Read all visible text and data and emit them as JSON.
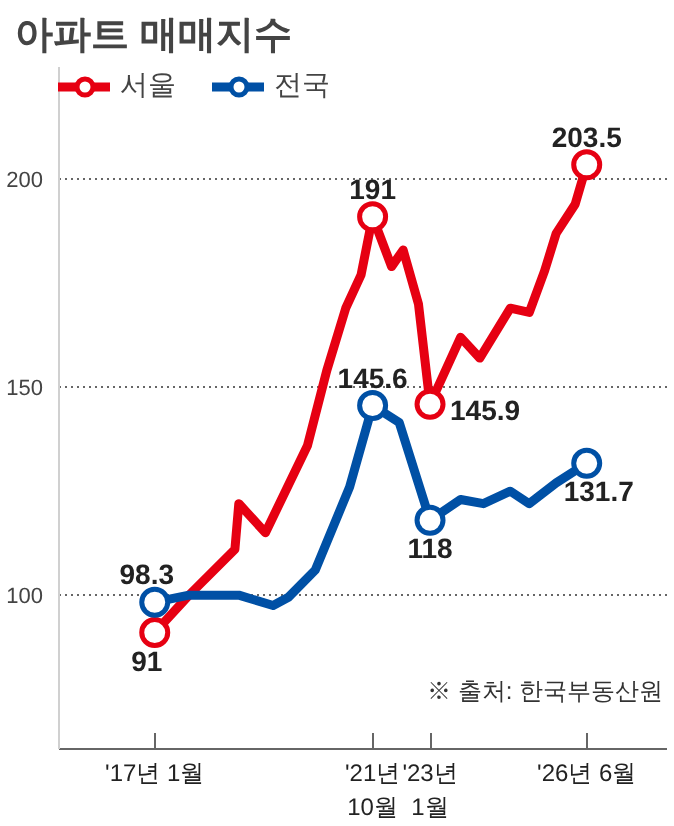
{
  "chart_data": {
    "type": "line",
    "title": "아파트 매매지수",
    "xlim": [
      "2014-12",
      "2028-03"
    ],
    "xticks": [
      {
        "value": "2017-01",
        "label": "'17년 1월"
      },
      {
        "value": "2021-10",
        "label": "'21년\n10월"
      },
      {
        "value": "2023-01",
        "label": "'23년\n1월"
      },
      {
        "value": "2026-06",
        "label": "'26년 6월"
      }
    ],
    "ylim": [
      63,
      227
    ],
    "yticks": [
      100,
      150,
      200
    ],
    "grid": "y",
    "legend": "top left",
    "annotations": [
      "※ 출처: 한국부동산원"
    ],
    "series": [
      {
        "name": "서울",
        "color": "#e60012",
        "x": [
          "2017-01",
          "2017-10",
          "2018-10",
          "2018-11",
          "2019-06",
          "2020-05",
          "2020-10",
          "2021-03",
          "2021-07",
          "2021-10",
          "2022-03",
          "2022-06",
          "2022-10",
          "2023-01",
          "2023-09",
          "2024-02",
          "2024-10",
          "2025-03",
          "2025-07",
          "2025-10",
          "2026-03",
          "2026-06"
        ],
        "values": [
          91,
          100,
          111,
          122,
          115,
          136,
          154,
          169,
          177,
          191,
          179,
          183,
          170,
          145.9,
          162,
          157,
          169,
          168,
          178,
          187,
          194,
          203.5
        ],
        "value_labels": [
          "91",
          null,
          null,
          null,
          null,
          null,
          null,
          null,
          null,
          "191",
          null,
          null,
          null,
          "145.9",
          null,
          null,
          null,
          null,
          null,
          null,
          null,
          "203.5"
        ]
      },
      {
        "name": "전국",
        "color": "#0050a5",
        "x": [
          "2017-01",
          "2017-10",
          "2018-11",
          "2019-08",
          "2019-12",
          "2020-07",
          "2021-04",
          "2021-10",
          "2022-05",
          "2023-01",
          "2023-09",
          "2024-03",
          "2024-10",
          "2025-03",
          "2025-10",
          "2026-06"
        ],
        "values": [
          98.3,
          100,
          100,
          97.5,
          99.5,
          106,
          126,
          145.6,
          141.5,
          118,
          123,
          122,
          125,
          122,
          127,
          131.7
        ],
        "value_labels": [
          "98.3",
          null,
          null,
          null,
          null,
          null,
          null,
          "145.6",
          null,
          "118",
          null,
          null,
          null,
          null,
          null,
          "131.7"
        ]
      }
    ]
  }
}
